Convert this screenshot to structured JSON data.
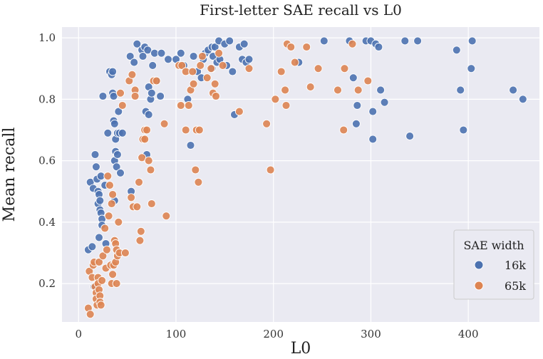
{
  "chart_data": {
    "type": "scatter",
    "title": "First-letter SAE recall vs L0",
    "xlabel": "L0",
    "ylabel": "Mean recall",
    "xlim": [
      -17,
      473
    ],
    "ylim": [
      0.075,
      1.035
    ],
    "xticks": [
      0,
      100,
      200,
      300,
      400
    ],
    "yticks": [
      0.2,
      0.4,
      0.6,
      0.8,
      1.0
    ],
    "ytick_labels": [
      "0.2",
      "0.4",
      "0.6",
      "0.8",
      "1.0"
    ],
    "grid": true,
    "legend": {
      "title": "SAE width",
      "position": "bottom-right"
    },
    "series": [
      {
        "name": "16k",
        "color": "#4c72b0",
        "points": [
          [
            10,
            0.31
          ],
          [
            12,
            0.53
          ],
          [
            14,
            0.32
          ],
          [
            15,
            0.51
          ],
          [
            16,
            0.19
          ],
          [
            17,
            0.62
          ],
          [
            18,
            0.58
          ],
          [
            19,
            0.54
          ],
          [
            20,
            0.5
          ],
          [
            20,
            0.46
          ],
          [
            21,
            0.35
          ],
          [
            21,
            0.49
          ],
          [
            22,
            0.47
          ],
          [
            22,
            0.44
          ],
          [
            23,
            0.55
          ],
          [
            23,
            0.43
          ],
          [
            24,
            0.41
          ],
          [
            24,
            0.39
          ],
          [
            25,
            0.81
          ],
          [
            27,
            0.52
          ],
          [
            28,
            0.33
          ],
          [
            30,
            0.69
          ],
          [
            32,
            0.89
          ],
          [
            34,
            0.88
          ],
          [
            35,
            0.89
          ],
          [
            35,
            0.82
          ],
          [
            36,
            0.81
          ],
          [
            36,
            0.73
          ],
          [
            37,
            0.72
          ],
          [
            37,
            0.6
          ],
          [
            37,
            0.47
          ],
          [
            38,
            0.67
          ],
          [
            38,
            0.63
          ],
          [
            39,
            0.58
          ],
          [
            40,
            0.69
          ],
          [
            40,
            0.62
          ],
          [
            41,
            0.76
          ],
          [
            42,
            0.69
          ],
          [
            43,
            0.56
          ],
          [
            45,
            0.69
          ],
          [
            53,
            0.94
          ],
          [
            54,
            0.5
          ],
          [
            57,
            0.92
          ],
          [
            60,
            0.98
          ],
          [
            65,
            0.96
          ],
          [
            66,
            0.94
          ],
          [
            68,
            0.97
          ],
          [
            69,
            0.76
          ],
          [
            70,
            0.62
          ],
          [
            71,
            0.96
          ],
          [
            72,
            0.84
          ],
          [
            72,
            0.75
          ],
          [
            74,
            0.8
          ],
          [
            75,
            0.82
          ],
          [
            76,
            0.91
          ],
          [
            78,
            0.95
          ],
          [
            80,
            0.86
          ],
          [
            84,
            0.81
          ],
          [
            85,
            0.95
          ],
          [
            92,
            0.93
          ],
          [
            100,
            0.93
          ],
          [
            105,
            0.95
          ],
          [
            108,
            0.91
          ],
          [
            112,
            0.8
          ],
          [
            115,
            0.65
          ],
          [
            118,
            0.94
          ],
          [
            122,
            0.89
          ],
          [
            126,
            0.87
          ],
          [
            128,
            0.93
          ],
          [
            130,
            0.95
          ],
          [
            133,
            0.96
          ],
          [
            137,
            0.9
          ],
          [
            137,
            0.97
          ],
          [
            138,
            0.94
          ],
          [
            140,
            0.97
          ],
          [
            142,
            0.92
          ],
          [
            144,
            0.99
          ],
          [
            145,
            0.93
          ],
          [
            150,
            0.98
          ],
          [
            152,
            0.91
          ],
          [
            155,
            0.99
          ],
          [
            158,
            0.89
          ],
          [
            160,
            0.75
          ],
          [
            165,
            0.97
          ],
          [
            168,
            0.93
          ],
          [
            170,
            0.98
          ],
          [
            172,
            0.92
          ],
          [
            175,
            0.93
          ],
          [
            226,
            0.92
          ],
          [
            252,
            0.99
          ],
          [
            278,
            0.99
          ],
          [
            282,
            0.87
          ],
          [
            285,
            0.72
          ],
          [
            286,
            0.78
          ],
          [
            295,
            0.99
          ],
          [
            300,
            0.99
          ],
          [
            302,
            0.76
          ],
          [
            302,
            0.67
          ],
          [
            305,
            0.98
          ],
          [
            308,
            0.97
          ],
          [
            310,
            0.83
          ],
          [
            314,
            0.79
          ],
          [
            335,
            0.99
          ],
          [
            340,
            0.68
          ],
          [
            348,
            0.99
          ],
          [
            388,
            0.96
          ],
          [
            392,
            0.83
          ],
          [
            395,
            0.7
          ],
          [
            403,
            0.9
          ],
          [
            404,
            0.99
          ],
          [
            446,
            0.83
          ],
          [
            456,
            0.8
          ]
        ]
      },
      {
        "name": "65k",
        "color": "#dd8452",
        "points": [
          [
            10,
            0.12
          ],
          [
            11,
            0.24
          ],
          [
            12,
            0.1
          ],
          [
            14,
            0.22
          ],
          [
            15,
            0.26
          ],
          [
            16,
            0.27
          ],
          [
            17,
            0.19
          ],
          [
            18,
            0.17
          ],
          [
            18,
            0.15
          ],
          [
            19,
            0.13
          ],
          [
            20,
            0.22
          ],
          [
            20,
            0.2
          ],
          [
            21,
            0.27
          ],
          [
            21,
            0.18
          ],
          [
            22,
            0.16
          ],
          [
            22,
            0.14
          ],
          [
            23,
            0.13
          ],
          [
            24,
            0.21
          ],
          [
            25,
            0.29
          ],
          [
            27,
            0.38
          ],
          [
            28,
            0.25
          ],
          [
            29,
            0.31
          ],
          [
            30,
            0.55
          ],
          [
            31,
            0.42
          ],
          [
            32,
            0.52
          ],
          [
            33,
            0.26
          ],
          [
            34,
            0.2
          ],
          [
            34,
            0.46
          ],
          [
            35,
            0.49
          ],
          [
            35,
            0.23
          ],
          [
            36,
            0.26
          ],
          [
            37,
            0.34
          ],
          [
            38,
            0.33
          ],
          [
            38,
            0.27
          ],
          [
            39,
            0.31
          ],
          [
            39,
            0.2
          ],
          [
            40,
            0.29
          ],
          [
            41,
            0.4
          ],
          [
            42,
            0.3
          ],
          [
            43,
            0.82
          ],
          [
            45,
            0.78
          ],
          [
            48,
            0.3
          ],
          [
            52,
            0.86
          ],
          [
            54,
            0.48
          ],
          [
            55,
            0.88
          ],
          [
            56,
            0.45
          ],
          [
            58,
            0.83
          ],
          [
            58,
            0.81
          ],
          [
            60,
            0.45
          ],
          [
            62,
            0.53
          ],
          [
            63,
            0.34
          ],
          [
            64,
            0.37
          ],
          [
            65,
            0.61
          ],
          [
            66,
            0.67
          ],
          [
            68,
            0.7
          ],
          [
            68,
            0.67
          ],
          [
            70,
            0.7
          ],
          [
            72,
            0.6
          ],
          [
            74,
            0.57
          ],
          [
            75,
            0.46
          ],
          [
            77,
            0.86
          ],
          [
            80,
            0.86
          ],
          [
            88,
            0.72
          ],
          [
            90,
            0.42
          ],
          [
            103,
            0.91
          ],
          [
            105,
            0.78
          ],
          [
            106,
            0.91
          ],
          [
            110,
            0.7
          ],
          [
            110,
            0.89
          ],
          [
            113,
            0.78
          ],
          [
            115,
            0.83
          ],
          [
            117,
            0.89
          ],
          [
            118,
            0.85
          ],
          [
            120,
            0.57
          ],
          [
            121,
            0.7
          ],
          [
            123,
            0.53
          ],
          [
            124,
            0.7
          ],
          [
            125,
            0.91
          ],
          [
            127,
            0.94
          ],
          [
            132,
            0.87
          ],
          [
            136,
            0.9
          ],
          [
            138,
            0.82
          ],
          [
            140,
            0.85
          ],
          [
            141,
            0.81
          ],
          [
            144,
            0.95
          ],
          [
            148,
            0.91
          ],
          [
            165,
            0.76
          ],
          [
            175,
            0.9
          ],
          [
            193,
            0.72
          ],
          [
            197,
            0.57
          ],
          [
            202,
            0.8
          ],
          [
            208,
            0.89
          ],
          [
            212,
            0.83
          ],
          [
            213,
            0.78
          ],
          [
            214,
            0.98
          ],
          [
            218,
            0.97
          ],
          [
            222,
            0.92
          ],
          [
            234,
            0.97
          ],
          [
            238,
            0.84
          ],
          [
            246,
            0.9
          ],
          [
            266,
            0.83
          ],
          [
            272,
            0.7
          ],
          [
            273,
            0.9
          ],
          [
            281,
            0.98
          ],
          [
            287,
            0.83
          ],
          [
            297,
            0.86
          ]
        ]
      }
    ]
  }
}
